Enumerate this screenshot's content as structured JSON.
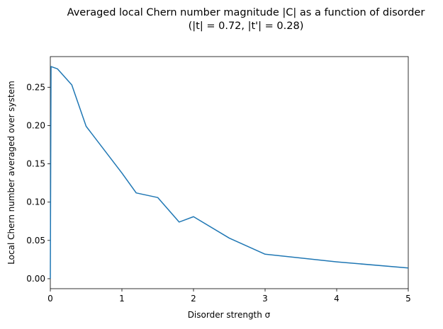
{
  "chart_data": {
    "type": "line",
    "title": "Averaged local Chern number magnitude |C| as a function of disorder",
    "subtitle": "(|t| = 0.72, |t'| = 0.28)",
    "xlabel": "Disorder strength σ",
    "ylabel": "Local Chern number averaged over system",
    "xlim": [
      0,
      5
    ],
    "ylim": [
      -0.013,
      0.29
    ],
    "xticks": [
      0,
      1,
      2,
      3,
      4,
      5
    ],
    "xtick_labels": [
      "0",
      "1",
      "2",
      "3",
      "4",
      "5"
    ],
    "yticks": [
      0.0,
      0.05,
      0.1,
      0.15,
      0.2,
      0.25
    ],
    "ytick_labels": [
      "0.00",
      "0.05",
      "0.10",
      "0.15",
      "0.20",
      "0.25"
    ],
    "grid": false,
    "series": [
      {
        "color": "#1f77b4",
        "x": [
          0,
          0.01,
          0.1,
          0.3,
          0.5,
          1.0,
          1.2,
          1.5,
          1.8,
          2.0,
          2.5,
          3.0,
          4.0,
          5.0
        ],
        "y": [
          0.0,
          0.277,
          0.274,
          0.253,
          0.199,
          0.138,
          0.112,
          0.106,
          0.074,
          0.081,
          0.053,
          0.032,
          0.022,
          0.014
        ]
      }
    ]
  }
}
